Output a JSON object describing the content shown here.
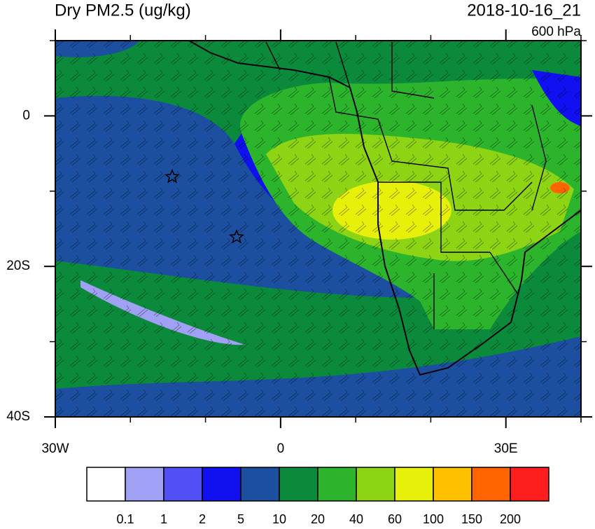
{
  "map_data": {
    "title": "Dry PM2.5 (ug/kg)",
    "valid_time": "2018-10-16_21",
    "level": "600 hPa",
    "lon_range": [
      -30,
      40
    ],
    "lat_range": [
      -40,
      10
    ],
    "lon_ticks": [
      {
        "value": -30,
        "label": "30W"
      },
      0,
      {
        "value": 30,
        "label": "30E"
      }
    ],
    "lat_ticks": [
      0,
      {
        "value": -20,
        "label": "20S"
      },
      {
        "value": -40,
        "label": "40S"
      }
    ],
    "lon_minor_ticks": [
      -20,
      -10,
      10,
      20,
      40
    ],
    "lat_minor_ticks": [
      10,
      -10,
      -30
    ],
    "colorbar": {
      "levels": [
        0.1,
        1,
        2,
        5,
        10,
        20,
        40,
        60,
        100,
        150,
        200
      ],
      "colors": [
        "#ffffff",
        "#a0a0f5",
        "#5050f5",
        "#1010f0",
        "#1c4fa0",
        "#0c8a3c",
        "#2cb42c",
        "#8cd414",
        "#e6f00a",
        "#ffc000",
        "#ff6400",
        "#ff1e1e"
      ]
    }
  }
}
